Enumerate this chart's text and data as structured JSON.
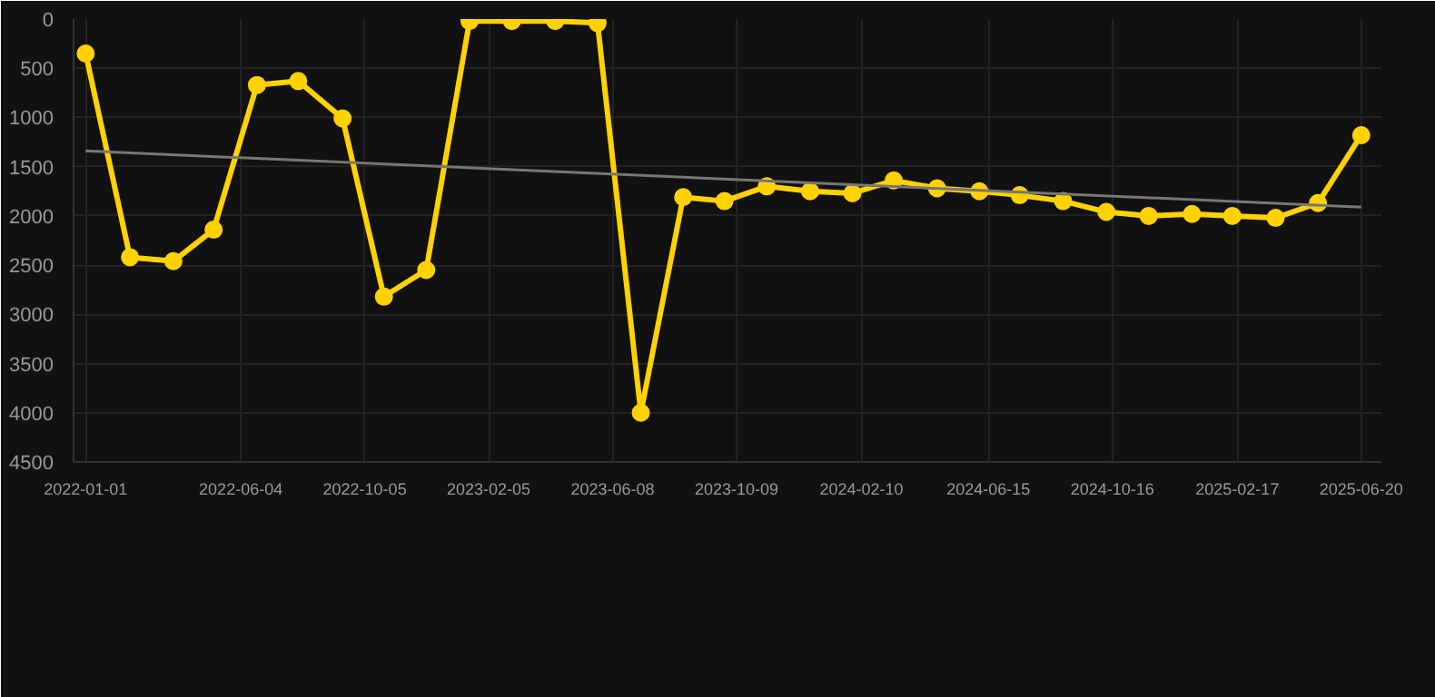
{
  "chart_data": {
    "type": "line",
    "x": [
      "2022-01-01",
      "2022-02-14",
      "2022-03-29",
      "2022-05-08",
      "2022-06-20",
      "2022-07-31",
      "2022-09-13",
      "2022-10-24",
      "2022-12-05",
      "2023-01-17",
      "2023-02-28",
      "2023-04-12",
      "2023-05-24",
      "2023-07-06",
      "2023-08-17",
      "2023-09-27",
      "2023-11-08",
      "2023-12-21",
      "2024-02-01",
      "2024-03-13",
      "2024-04-25",
      "2024-06-06",
      "2024-07-16",
      "2024-08-28",
      "2024-10-10",
      "2024-11-21",
      "2025-01-03",
      "2025-02-12",
      "2025-03-27",
      "2025-05-08",
      "2025-06-20"
    ],
    "series": [
      {
        "color": "#ffd200",
        "marker": "circle",
        "values": [
          350,
          2420,
          2460,
          2140,
          670,
          630,
          1010,
          2820,
          2550,
          20,
          20,
          20,
          40,
          4000,
          1810,
          1850,
          1700,
          1750,
          1770,
          1640,
          1720,
          1750,
          1790,
          1850,
          1960,
          2000,
          1980,
          2000,
          2020,
          1870,
          1180
        ]
      },
      {
        "type": "line",
        "color": "#777777",
        "marker": "none",
        "x": [
          "2022-01-01",
          "2025-06-20"
        ],
        "values": [
          1340,
          1910
        ]
      }
    ],
    "xlim": [
      "2021-12-20",
      "2025-07-10"
    ],
    "xticks": [
      "2022-01-01",
      "2022-06-04",
      "2022-10-05",
      "2023-02-05",
      "2023-06-08",
      "2023-10-09",
      "2024-02-10",
      "2024-06-15",
      "2024-10-16",
      "2025-02-17",
      "2025-06-20"
    ],
    "ylim": [
      4500,
      0
    ],
    "yticks": [
      0,
      500,
      1000,
      1500,
      2000,
      2500,
      3000,
      3500,
      4000,
      4500
    ],
    "grid": true,
    "line_style": "solid"
  }
}
